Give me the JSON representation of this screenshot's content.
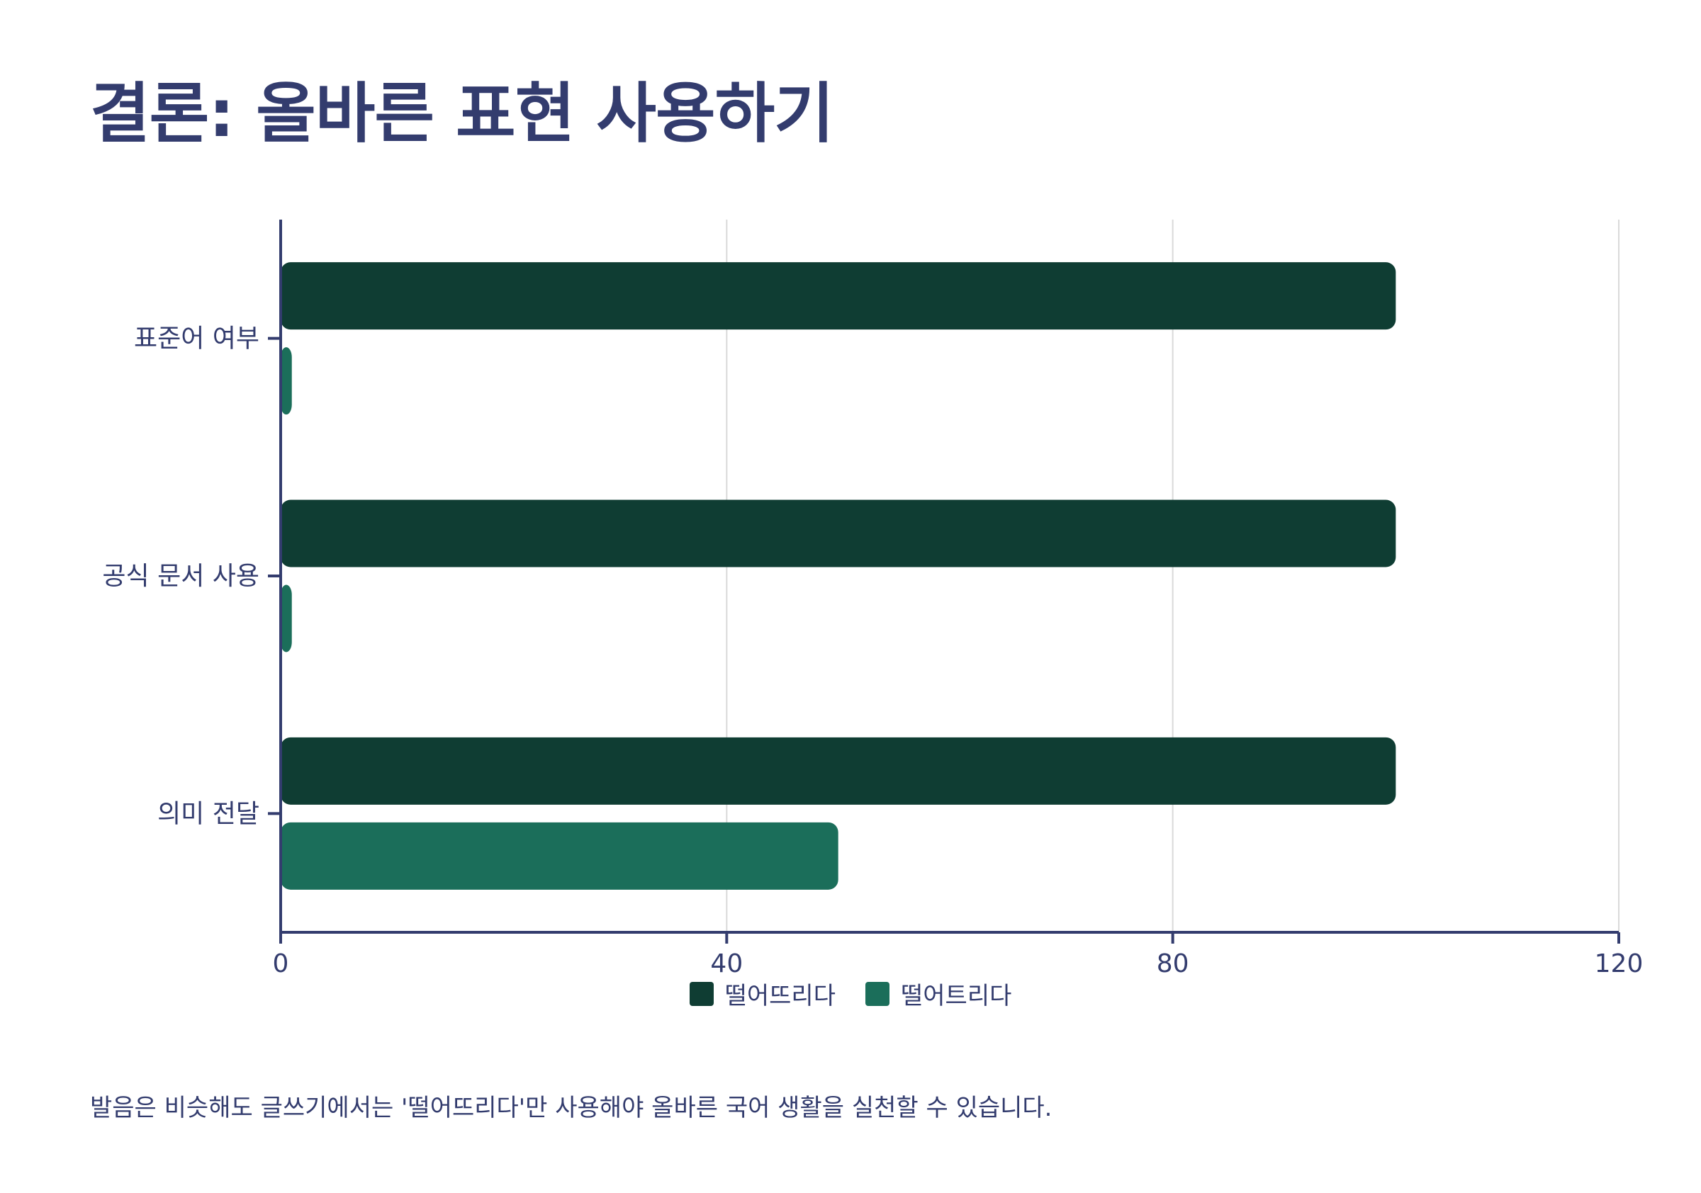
{
  "title": "결론: 올바른 표현 사용하기",
  "note": "발음은 비슷해도 글쓰기에서는 '떨어뜨리다'만 사용해야 올바른 국어 생활을 실천할 수 있습니다.",
  "colors": {
    "text": "#333c6e",
    "series_1": "#0f3d33",
    "series_2": "#1b6e5a",
    "grid": "#d9d9d9"
  },
  "chart_data": {
    "type": "bar",
    "orientation": "horizontal",
    "categories": [
      "표준어 여부",
      "공식 문서 사용",
      "의미 전달"
    ],
    "series": [
      {
        "name": "떨어뜨리다",
        "values": [
          100,
          100,
          100
        ],
        "color": "#0f3d33"
      },
      {
        "name": "떨어트리다",
        "values": [
          1,
          1,
          50
        ],
        "color": "#1b6e5a"
      }
    ],
    "xlim": [
      0,
      120
    ],
    "xticks": [
      0,
      40,
      80,
      120
    ],
    "xlabel": "",
    "ylabel": "",
    "grid": "vertical",
    "legend_position": "bottom-center"
  }
}
